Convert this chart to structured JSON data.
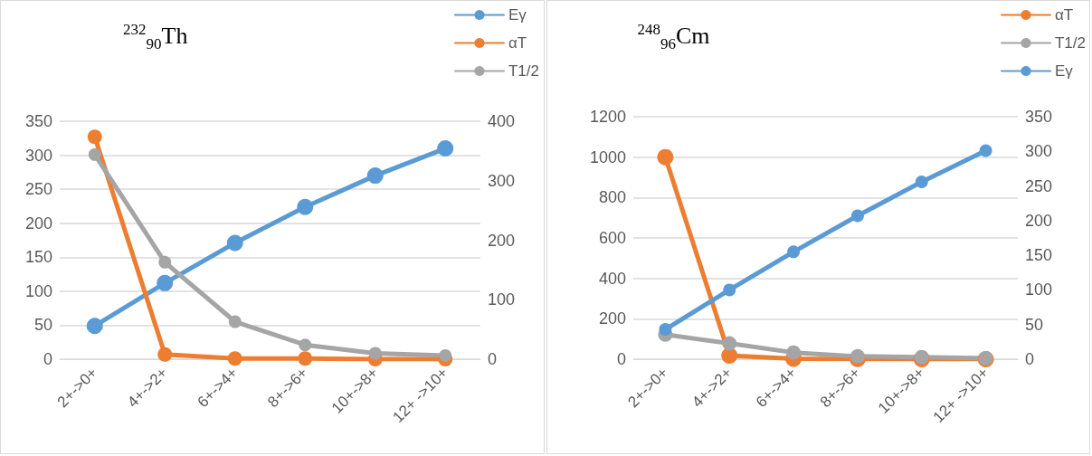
{
  "chart_data": [
    {
      "type": "line",
      "title": "$^{232}$$_{90}$Th",
      "categories": [
        "2+->0+",
        "4+->2+",
        "6+->4+",
        "8+->6+",
        "10+->8+",
        "12+ ->10+"
      ],
      "series": [
        {
          "name": "Eγ",
          "color": "#5b9bd5",
          "values": [
            49,
            112,
            171,
            224,
            270,
            310
          ]
        },
        {
          "name": "αT",
          "color": "#ed7d31",
          "values": [
            327,
            7,
            1,
            1,
            0,
            0
          ]
        },
        {
          "name": "T1/2",
          "color": "#a5a5a5",
          "axis": "y2",
          "values": [
            344,
            163,
            63,
            24,
            10,
            6
          ]
        }
      ],
      "ylim": [
        0,
        350
      ],
      "yticks": [
        0,
        50,
        100,
        150,
        200,
        250,
        300,
        350
      ],
      "y2lim": [
        0,
        400
      ],
      "y2ticks": [
        0,
        100,
        200,
        300,
        400
      ],
      "grid": "y",
      "legend": "top right",
      "marker": "circle",
      "line_style": "solid"
    },
    {
      "type": "line",
      "title": "$^{248}$$_{96}$Cm",
      "categories": [
        "2+->0+",
        "4+->2+",
        "6+->4+",
        "8+->6+",
        "10+->8+",
        "12+ ->10+"
      ],
      "series": [
        {
          "name": "αT",
          "color": "#ed7d31",
          "values": [
            1000,
            18,
            2,
            1,
            0,
            0
          ]
        },
        {
          "name": "T1/2",
          "color": "#a5a5a5",
          "values": [
            122,
            78,
            33,
            14,
            10,
            5
          ]
        },
        {
          "name": "Eγ",
          "color": "#5b9bd5",
          "axis": "y2",
          "values": [
            43,
            100,
            155,
            207,
            256,
            301
          ]
        }
      ],
      "ylim": [
        0,
        1200
      ],
      "yticks": [
        0,
        200,
        400,
        600,
        800,
        1000,
        1200
      ],
      "y2lim": [
        0,
        350
      ],
      "y2ticks": [
        0,
        50,
        100,
        150,
        200,
        250,
        300,
        350
      ],
      "grid": "y",
      "legend": "top right",
      "marker": "circle",
      "line_style": "solid"
    }
  ]
}
